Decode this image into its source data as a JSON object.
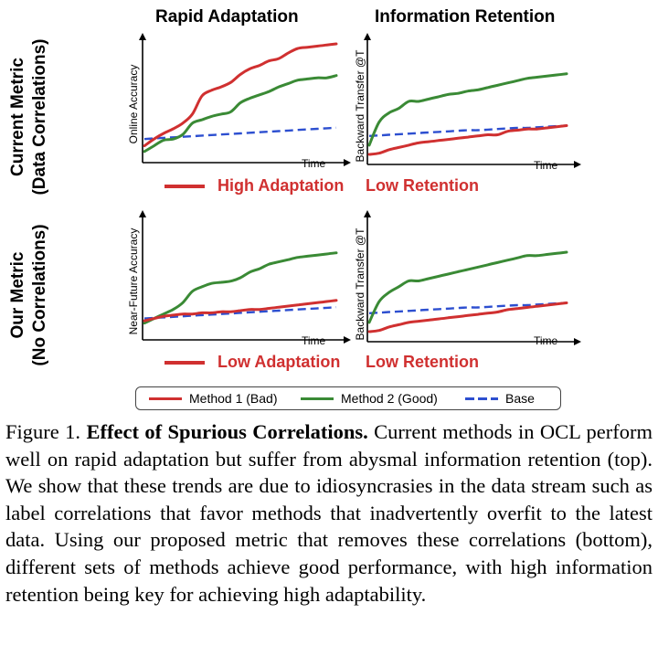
{
  "columns": [
    "Rapid Adaptation",
    "Information Retention"
  ],
  "rows": [
    {
      "title_line1": "Current Metric",
      "title_line2": "(Data Correlations)"
    },
    {
      "title_line1": "Our Metric",
      "title_line2": "(No Correlations)"
    }
  ],
  "panels": {
    "top_left": {
      "ylabel": "Online Accuracy",
      "xlabel": "Time"
    },
    "top_right": {
      "ylabel": "Backward Transfer @T",
      "xlabel": "Time"
    },
    "bottom_left": {
      "ylabel": "Near-Future Accuracy",
      "xlabel": "Time"
    },
    "bottom_right": {
      "ylabel": "Backward Transfer @T",
      "xlabel": "Time"
    }
  },
  "verdicts": {
    "top_left": "High Adaptation",
    "top_right": "Low Retention",
    "bottom_left": "Low Adaptation",
    "bottom_right": "Low Retention"
  },
  "legend": [
    {
      "label": "Method 1 (Bad)",
      "color": "#d03030",
      "style": "solid"
    },
    {
      "label": "Method 2 (Good)",
      "color": "#3a8a35",
      "style": "solid"
    },
    {
      "label": "Base",
      "color": "#2d4fd0",
      "style": "dashed"
    }
  ],
  "caption": {
    "prefix": "Figure 1. ",
    "title": "Effect of Spurious Correlations.",
    "body": " Current methods in OCL perform well on rapid adaptation but suffer from abysmal information retention (top). We show that these trends are due to idiosyncrasies in the data stream such as label correlations that fa­vor methods that inadvertently overfit to the latest data. Using our proposed metric that removes these correlations (bottom), differ­ent sets of methods achieve good performance, with high informa­tion retention being key for achieving high adaptability."
  },
  "chart_data": [
    {
      "type": "line",
      "id": "top_left",
      "xlabel": "Time",
      "ylabel": "Online Accuracy",
      "x": [
        0,
        5,
        10,
        15,
        20,
        25,
        30,
        35,
        40,
        45,
        50,
        55,
        60,
        65,
        70,
        75,
        80,
        85,
        90,
        95,
        100
      ],
      "xlim": [
        0,
        100
      ],
      "ylim": [
        0,
        100
      ],
      "series": [
        {
          "name": "Method 1 (Bad)",
          "values": [
            10,
            16,
            21,
            25,
            30,
            38,
            54,
            59,
            62,
            66,
            73,
            78,
            81,
            85,
            87,
            92,
            96,
            97,
            98,
            99,
            100
          ]
        },
        {
          "name": "Method 2 (Good)",
          "values": [
            5,
            10,
            15,
            16,
            20,
            30,
            33,
            36,
            38,
            40,
            48,
            52,
            55,
            58,
            62,
            65,
            68,
            69,
            70,
            70,
            72
          ]
        },
        {
          "name": "Base",
          "values": [
            16,
            16.5,
            17,
            17.5,
            18,
            18.5,
            19,
            19.5,
            20,
            20.5,
            21,
            21.5,
            22,
            22.5,
            23,
            23.5,
            24,
            24.5,
            25,
            25.5,
            26
          ]
        }
      ]
    },
    {
      "type": "line",
      "id": "top_right",
      "xlabel": "Time",
      "ylabel": "Backward Transfer @T",
      "x": [
        0,
        5,
        10,
        15,
        20,
        25,
        30,
        35,
        40,
        45,
        50,
        55,
        60,
        65,
        70,
        75,
        80,
        85,
        90,
        95,
        100
      ],
      "xlim": [
        0,
        100
      ],
      "ylim": [
        0,
        100
      ],
      "series": [
        {
          "name": "Method 1 (Bad)",
          "values": [
            4,
            5,
            8,
            10,
            12,
            14,
            15,
            16,
            17,
            18,
            19,
            20,
            21,
            21,
            24,
            25,
            26,
            26,
            27,
            28,
            29
          ]
        },
        {
          "name": "Method 2 (Good)",
          "values": [
            12,
            32,
            40,
            44,
            50,
            50,
            52,
            54,
            56,
            57,
            59,
            60,
            62,
            64,
            66,
            68,
            70,
            71,
            72,
            73,
            74
          ]
        },
        {
          "name": "Base",
          "values": [
            20,
            20.5,
            21,
            21.5,
            22,
            22.5,
            23,
            23.5,
            24,
            24.5,
            25,
            25,
            25.5,
            26,
            26.5,
            27,
            27,
            27.5,
            28,
            28.5,
            29
          ]
        }
      ]
    },
    {
      "type": "line",
      "id": "bottom_left",
      "xlabel": "Time",
      "ylabel": "Near-Future Accuracy",
      "x": [
        0,
        5,
        10,
        15,
        20,
        25,
        30,
        35,
        40,
        45,
        50,
        55,
        60,
        65,
        70,
        75,
        80,
        85,
        90,
        95,
        100
      ],
      "xlim": [
        0,
        100
      ],
      "ylim": [
        0,
        100
      ],
      "series": [
        {
          "name": "Method 1 (Bad)",
          "values": [
            12,
            14,
            16,
            17,
            18,
            18,
            19,
            19,
            20,
            20,
            21,
            22,
            22,
            23,
            24,
            25,
            26,
            27,
            28,
            29,
            30
          ]
        },
        {
          "name": "Method 2 (Good)",
          "values": [
            10,
            14,
            18,
            22,
            28,
            38,
            42,
            45,
            46,
            47,
            50,
            55,
            58,
            62,
            64,
            66,
            68,
            69,
            70,
            71,
            72
          ]
        },
        {
          "name": "Base",
          "values": [
            14,
            14.5,
            15,
            15.5,
            16,
            16.5,
            17,
            17.5,
            18,
            18.5,
            19,
            19.5,
            20,
            20.5,
            21,
            21.5,
            22,
            22.5,
            23,
            23.5,
            24
          ]
        }
      ]
    },
    {
      "type": "line",
      "id": "bottom_right",
      "xlabel": "Time",
      "ylabel": "Backward Transfer @T",
      "x": [
        0,
        5,
        10,
        15,
        20,
        25,
        30,
        35,
        40,
        45,
        50,
        55,
        60,
        65,
        70,
        75,
        80,
        85,
        90,
        95,
        100
      ],
      "xlim": [
        0,
        100
      ],
      "ylim": [
        0,
        100
      ],
      "series": [
        {
          "name": "Method 1 (Bad)",
          "values": [
            4,
            5,
            8,
            10,
            12,
            13,
            14,
            15,
            16,
            17,
            18,
            19,
            20,
            21,
            23,
            24,
            25,
            26,
            27,
            28,
            29
          ]
        },
        {
          "name": "Method 2 (Good)",
          "values": [
            12,
            30,
            38,
            43,
            48,
            48,
            50,
            52,
            54,
            56,
            58,
            60,
            62,
            64,
            66,
            68,
            70,
            70,
            71,
            72,
            73
          ]
        },
        {
          "name": "Base",
          "values": [
            20,
            20.5,
            21,
            21.5,
            22,
            22.5,
            23,
            23.5,
            24,
            24.5,
            25,
            25,
            25.5,
            26,
            26.5,
            27,
            27,
            27.5,
            28,
            28.5,
            29
          ]
        }
      ]
    }
  ]
}
